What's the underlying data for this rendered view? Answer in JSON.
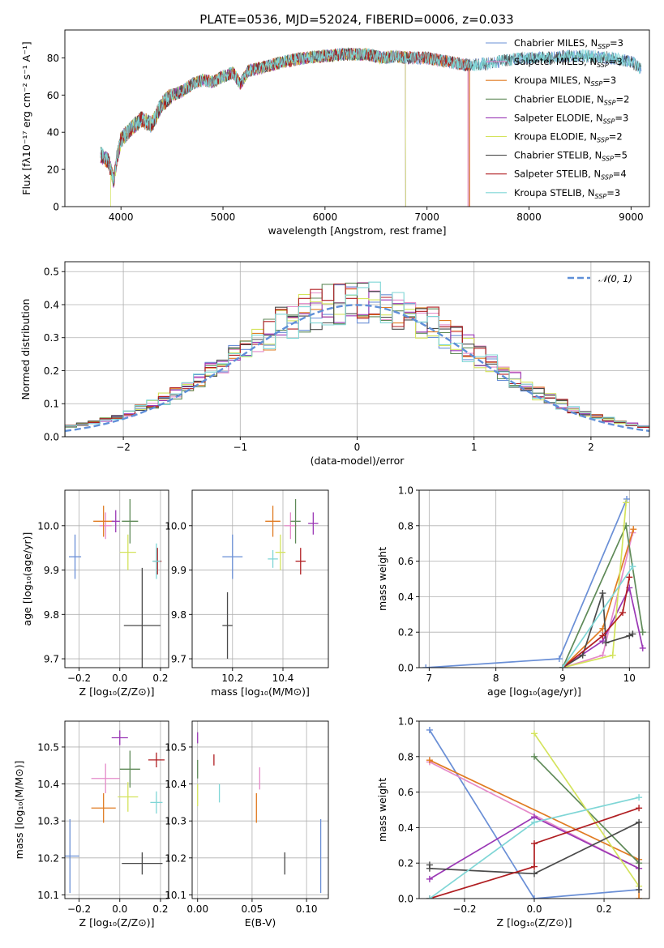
{
  "figure": {
    "title": "PLATE=0536, MJD=52024, FIBERID=0006, z=0.033"
  },
  "colors": {
    "Chabrier MILES": "#6a8fd6",
    "Salpeter MILES": "#e58ac9",
    "Kroupa MILES": "#e07b22",
    "Chabrier ELODIE": "#5f8a58",
    "Salpeter ELODIE": "#9a37b5",
    "Kroupa ELODIE": "#d4e35c",
    "Chabrier STELIB": "#4a4a4a",
    "Salpeter STELIB": "#b01e22",
    "Kroupa STELIB": "#7fd6d6"
  },
  "chart_data": [
    {
      "id": "spectrum",
      "type": "line",
      "xlabel": "wavelength [Angstrom, rest frame]",
      "ylabel": "Flux [fλ10⁻¹⁷ erg cm⁻² s⁻¹ A⁻¹]",
      "xlim": [
        3450,
        9180
      ],
      "ylim": [
        0,
        95
      ],
      "xticks": [
        4000,
        5000,
        6000,
        7000,
        8000,
        9000
      ],
      "yticks": [
        0,
        20,
        40,
        60,
        80
      ],
      "legend_position": "upper-right",
      "legend": [
        {
          "name": "Chabrier MILES",
          "label": "Chabrier MILES, N",
          "sub": "SSP",
          "suffix": "=3"
        },
        {
          "name": "Salpeter MILES",
          "label": "Salpeter MILES, N",
          "sub": "SSP",
          "suffix": "=3"
        },
        {
          "name": "Kroupa MILES",
          "label": "Kroupa MILES, N",
          "sub": "SSP",
          "suffix": "=3"
        },
        {
          "name": "Chabrier ELODIE",
          "label": "Chabrier ELODIE, N",
          "sub": "SSP",
          "suffix": "=2"
        },
        {
          "name": "Salpeter ELODIE",
          "label": "Salpeter ELODIE, N",
          "sub": "SSP",
          "suffix": "=3"
        },
        {
          "name": "Kroupa ELODIE",
          "label": "Kroupa ELODIE, N",
          "sub": "SSP",
          "suffix": "=2"
        },
        {
          "name": "Chabrier STELIB",
          "label": "Chabrier STELIB, N",
          "sub": "SSP",
          "suffix": "=5"
        },
        {
          "name": "Salpeter STELIB",
          "label": "Salpeter STELIB, N",
          "sub": "SSP",
          "suffix": "=4"
        },
        {
          "name": "Kroupa STELIB",
          "label": "Kroupa STELIB, N",
          "sub": "SSP",
          "suffix": "=3"
        }
      ],
      "continuum": [
        [
          3800,
          28
        ],
        [
          3880,
          24
        ],
        [
          3930,
          14
        ],
        [
          3960,
          26
        ],
        [
          4000,
          36
        ],
        [
          4100,
          42
        ],
        [
          4200,
          47
        ],
        [
          4300,
          44
        ],
        [
          4400,
          55
        ],
        [
          4500,
          60
        ],
        [
          4600,
          62
        ],
        [
          4700,
          66
        ],
        [
          4800,
          68
        ],
        [
          4900,
          67
        ],
        [
          5000,
          70
        ],
        [
          5100,
          72
        ],
        [
          5170,
          66
        ],
        [
          5250,
          73
        ],
        [
          5400,
          75
        ],
        [
          5600,
          78
        ],
        [
          5800,
          80
        ],
        [
          6000,
          81
        ],
        [
          6200,
          82
        ],
        [
          6400,
          82
        ],
        [
          6560,
          80
        ],
        [
          6700,
          81
        ],
        [
          6800,
          80
        ],
        [
          7000,
          80
        ],
        [
          7200,
          78
        ],
        [
          7400,
          76
        ],
        [
          7600,
          77
        ],
        [
          7800,
          79
        ],
        [
          8000,
          80
        ],
        [
          8200,
          80
        ],
        [
          8400,
          81
        ],
        [
          8600,
          81
        ],
        [
          8800,
          80
        ],
        [
          9000,
          78
        ],
        [
          9100,
          74
        ]
      ],
      "series_ranges": [
        {
          "name": "Chabrier MILES",
          "x": [
            3800,
            9100
          ]
        },
        {
          "name": "Salpeter MILES",
          "x": [
            3800,
            7400
          ]
        },
        {
          "name": "Kroupa MILES",
          "x": [
            3800,
            7420
          ]
        },
        {
          "name": "Chabrier ELODIE",
          "x": [
            3800,
            6790
          ]
        },
        {
          "name": "Salpeter ELODIE",
          "x": [
            3800,
            6790
          ]
        },
        {
          "name": "Kroupa ELODIE",
          "x": [
            3900,
            6790
          ]
        },
        {
          "name": "Chabrier STELIB",
          "x": [
            3800,
            9100
          ]
        },
        {
          "name": "Salpeter STELIB",
          "x": [
            3800,
            7410
          ]
        },
        {
          "name": "Kroupa STELIB",
          "x": [
            3800,
            9100
          ]
        }
      ]
    },
    {
      "id": "residuals",
      "type": "histogram",
      "xlabel": "(data-model)/error",
      "ylabel": "Normed distribution",
      "xlim": [
        -2.5,
        2.5
      ],
      "ylim": [
        0,
        0.53
      ],
      "xticks": [
        -2,
        -1,
        0,
        1,
        2
      ],
      "yticks": [
        0.0,
        0.1,
        0.2,
        0.3,
        0.4,
        0.5
      ],
      "grid": true,
      "bin_width": 0.1,
      "reference_curve": {
        "name": "N(0,1)",
        "label": "𝒩(0, 1)",
        "style": "dashed",
        "color": "#5f8fd8"
      },
      "legend_position": "upper-right"
    },
    {
      "id": "age-vs-Z",
      "type": "errorbar",
      "xlabel": "Z [log₁₀(Z/Z⊙)]",
      "ylabel": "age  [log₁₀(age/yr)]",
      "xlim": [
        -0.27,
        0.24
      ],
      "ylim": [
        9.68,
        10.08
      ],
      "xticks": [
        -0.2,
        0.0,
        0.2
      ],
      "yticks": [
        9.7,
        9.8,
        9.9,
        10.0
      ],
      "grid": true,
      "points": [
        {
          "name": "Chabrier MILES",
          "x": -0.22,
          "xerr": 0.03,
          "y": 9.93,
          "yerr": 0.05
        },
        {
          "name": "Salpeter MILES",
          "x": -0.07,
          "xerr": 0.03,
          "y": 10.0,
          "yerr": 0.03
        },
        {
          "name": "Kroupa MILES",
          "x": -0.08,
          "xerr": 0.05,
          "y": 10.01,
          "yerr": 0.035
        },
        {
          "name": "Chabrier ELODIE",
          "x": 0.05,
          "xerr": 0.04,
          "y": 10.01,
          "yerr": 0.05
        },
        {
          "name": "Salpeter ELODIE",
          "x": -0.02,
          "xerr": 0.02,
          "y": 10.01,
          "yerr": 0.025
        },
        {
          "name": "Kroupa ELODIE",
          "x": 0.04,
          "xerr": 0.04,
          "y": 9.94,
          "yerr": 0.04
        },
        {
          "name": "Chabrier STELIB",
          "x": 0.11,
          "xerr": 0.09,
          "y": 9.775,
          "yerr": 0.13
        },
        {
          "name": "Salpeter STELIB",
          "x": 0.185,
          "xerr": 0.02,
          "y": 9.92,
          "yerr": 0.03
        },
        {
          "name": "Kroupa STELIB",
          "x": 0.18,
          "xerr": 0.02,
          "y": 9.92,
          "yerr": 0.04
        }
      ]
    },
    {
      "id": "age-vs-mass",
      "type": "errorbar",
      "xlabel": "mass [log₁₀(M/M⊙)]",
      "xlim": [
        10.04,
        10.58
      ],
      "ylim": [
        9.68,
        10.08
      ],
      "xticks": [
        10.2,
        10.4
      ],
      "yticks": [
        9.7,
        9.8,
        9.9,
        10.0
      ],
      "grid": true,
      "points": [
        {
          "name": "Chabrier MILES",
          "x": 10.2,
          "xerr": 0.04,
          "y": 9.93,
          "yerr": 0.05
        },
        {
          "name": "Salpeter MILES",
          "x": 10.43,
          "xerr": 0.025,
          "y": 10.0,
          "yerr": 0.03
        },
        {
          "name": "Kroupa MILES",
          "x": 10.36,
          "xerr": 0.03,
          "y": 10.01,
          "yerr": 0.035
        },
        {
          "name": "Chabrier ELODIE",
          "x": 10.45,
          "xerr": 0.02,
          "y": 10.01,
          "yerr": 0.05
        },
        {
          "name": "Salpeter ELODIE",
          "x": 10.52,
          "xerr": 0.02,
          "y": 10.005,
          "yerr": 0.025
        },
        {
          "name": "Kroupa ELODIE",
          "x": 10.39,
          "xerr": 0.02,
          "y": 9.94,
          "yerr": 0.04
        },
        {
          "name": "Chabrier STELIB",
          "x": 10.18,
          "xerr": 0.02,
          "y": 9.775,
          "yerr": 0.075
        },
        {
          "name": "Salpeter STELIB",
          "x": 10.47,
          "xerr": 0.02,
          "y": 9.92,
          "yerr": 0.03
        },
        {
          "name": "Kroupa STELIB",
          "x": 10.36,
          "xerr": 0.02,
          "y": 9.925,
          "yerr": 0.02
        }
      ]
    },
    {
      "id": "massweight-vs-age",
      "type": "line",
      "xlabel": "age  [log₁₀(age/yr)]",
      "ylabel": "mass weight",
      "xlim": [
        6.85,
        10.3
      ],
      "ylim": [
        0,
        1.0
      ],
      "xticks": [
        7,
        8,
        9,
        10
      ],
      "yticks": [
        0.0,
        0.2,
        0.4,
        0.6,
        0.8,
        1.0
      ],
      "grid": true,
      "series": [
        {
          "name": "Chabrier MILES",
          "points": [
            [
              6.95,
              0.0
            ],
            [
              8.95,
              0.05
            ],
            [
              9.96,
              0.95
            ]
          ]
        },
        {
          "name": "Salpeter MILES",
          "points": [
            [
              9.0,
              0.0
            ],
            [
              9.6,
              0.07
            ],
            [
              10.05,
              0.76
            ]
          ]
        },
        {
          "name": "Kroupa MILES",
          "points": [
            [
              9.0,
              0.0
            ],
            [
              9.6,
              0.22
            ],
            [
              10.06,
              0.78
            ]
          ]
        },
        {
          "name": "Chabrier ELODIE",
          "points": [
            [
              9.0,
              0.0
            ],
            [
              9.95,
              0.8
            ],
            [
              10.2,
              0.2
            ]
          ]
        },
        {
          "name": "Salpeter ELODIE",
          "points": [
            [
              9.0,
              0.0
            ],
            [
              9.6,
              0.15
            ],
            [
              10.0,
              0.45
            ],
            [
              10.2,
              0.11
            ]
          ]
        },
        {
          "name": "Kroupa ELODIE",
          "points": [
            [
              9.0,
              0.0
            ],
            [
              9.75,
              0.07
            ],
            [
              9.95,
              0.93
            ]
          ]
        },
        {
          "name": "Chabrier STELIB",
          "points": [
            [
              9.0,
              0.0
            ],
            [
              9.3,
              0.07
            ],
            [
              9.6,
              0.42
            ],
            [
              9.65,
              0.14
            ],
            [
              10.0,
              0.18
            ],
            [
              10.05,
              0.19
            ]
          ]
        },
        {
          "name": "Salpeter STELIB",
          "points": [
            [
              9.0,
              0.0
            ],
            [
              9.6,
              0.18
            ],
            [
              9.9,
              0.31
            ],
            [
              10.0,
              0.51
            ]
          ]
        },
        {
          "name": "Kroupa STELIB",
          "points": [
            [
              9.0,
              0.0
            ],
            [
              10.05,
              0.57
            ]
          ]
        }
      ]
    },
    {
      "id": "mass-vs-Z",
      "type": "errorbar",
      "xlabel": "Z [log₁₀(Z/Z⊙)]",
      "ylabel": "mass [log₁₀(M/M⊙)]",
      "xlim": [
        -0.27,
        0.24
      ],
      "ylim": [
        10.09,
        10.57
      ],
      "xticks": [
        -0.2,
        0.0,
        0.2
      ],
      "yticks": [
        10.1,
        10.2,
        10.3,
        10.4,
        10.5
      ],
      "grid": true,
      "points": [
        {
          "name": "Chabrier MILES",
          "x": -0.245,
          "xerr": 0.045,
          "y": 10.205,
          "yerr": 0.1
        },
        {
          "name": "Salpeter MILES",
          "x": -0.07,
          "xerr": 0.07,
          "y": 10.415,
          "yerr": 0.04
        },
        {
          "name": "Kroupa MILES",
          "x": -0.08,
          "xerr": 0.06,
          "y": 10.335,
          "yerr": 0.04
        },
        {
          "name": "Chabrier ELODIE",
          "x": 0.05,
          "xerr": 0.05,
          "y": 10.44,
          "yerr": 0.05
        },
        {
          "name": "Salpeter ELODIE",
          "x": 0.0,
          "xerr": 0.04,
          "y": 10.525,
          "yerr": 0.02
        },
        {
          "name": "Kroupa ELODIE",
          "x": 0.04,
          "xerr": 0.05,
          "y": 10.365,
          "yerr": 0.04
        },
        {
          "name": "Chabrier STELIB",
          "x": 0.11,
          "xerr": 0.1,
          "y": 10.185,
          "yerr": 0.03
        },
        {
          "name": "Salpeter STELIB",
          "x": 0.18,
          "xerr": 0.04,
          "y": 10.465,
          "yerr": 0.02
        },
        {
          "name": "Kroupa STELIB",
          "x": 0.18,
          "xerr": 0.03,
          "y": 10.35,
          "yerr": 0.03
        }
      ]
    },
    {
      "id": "mass-vs-ebv",
      "type": "errorbar",
      "xlabel": "E(B-V)",
      "xlim": [
        -0.005,
        0.12
      ],
      "ylim": [
        10.09,
        10.57
      ],
      "xticks": [
        0.0,
        0.05,
        0.1
      ],
      "yticks": [
        10.1,
        10.2,
        10.3,
        10.4,
        10.5
      ],
      "grid": true,
      "points": [
        {
          "name": "Chabrier MILES",
          "x": 0.113,
          "xerr": 0.0,
          "y": 10.205,
          "yerr": 0.1
        },
        {
          "name": "Salpeter MILES",
          "x": 0.057,
          "xerr": 0.0,
          "y": 10.415,
          "yerr": 0.03
        },
        {
          "name": "Kroupa MILES",
          "x": 0.054,
          "xerr": 0.0,
          "y": 10.335,
          "yerr": 0.04
        },
        {
          "name": "Chabrier ELODIE",
          "x": 0.0,
          "xerr": 0.0,
          "y": 10.44,
          "yerr": 0.025
        },
        {
          "name": "Salpeter ELODIE",
          "x": 0.0,
          "xerr": 0.0,
          "y": 10.525,
          "yerr": 0.015
        },
        {
          "name": "Kroupa ELODIE",
          "x": 0.0,
          "xerr": 0.0,
          "y": 10.37,
          "yerr": 0.03
        },
        {
          "name": "Chabrier STELIB",
          "x": 0.08,
          "xerr": 0.0,
          "y": 10.185,
          "yerr": 0.03
        },
        {
          "name": "Salpeter STELIB",
          "x": 0.015,
          "xerr": 0.0,
          "y": 10.465,
          "yerr": 0.015
        },
        {
          "name": "Kroupa STELIB",
          "x": 0.02,
          "xerr": 0.0,
          "y": 10.375,
          "yerr": 0.025
        }
      ]
    },
    {
      "id": "massweight-vs-Z",
      "type": "line",
      "xlabel": "Z [log₁₀(Z/Z⊙)]",
      "ylabel": "mass weight",
      "xlim": [
        -0.33,
        0.33
      ],
      "ylim": [
        0,
        1.0
      ],
      "xticks": [
        -0.2,
        0.0,
        0.2
      ],
      "yticks": [
        0.0,
        0.2,
        0.4,
        0.6,
        0.8,
        1.0
      ],
      "grid": true,
      "series": [
        {
          "name": "Chabrier MILES",
          "points": [
            [
              -0.3,
              0.95
            ],
            [
              0.0,
              0.0
            ],
            [
              0.3,
              0.05
            ]
          ]
        },
        {
          "name": "Salpeter MILES",
          "points": [
            [
              -0.3,
              0.77
            ],
            [
              0.3,
              0.17
            ]
          ]
        },
        {
          "name": "Kroupa MILES",
          "points": [
            [
              -0.3,
              0.78
            ],
            [
              0.3,
              0.22
            ],
            [
              0.3,
              0.0
            ]
          ]
        },
        {
          "name": "Chabrier ELODIE",
          "points": [
            [
              0.0,
              0.8
            ],
            [
              0.3,
              0.2
            ]
          ]
        },
        {
          "name": "Salpeter ELODIE",
          "points": [
            [
              -0.3,
              0.11
            ],
            [
              0.0,
              0.46
            ],
            [
              0.3,
              0.17
            ]
          ]
        },
        {
          "name": "Kroupa ELODIE",
          "points": [
            [
              0.0,
              0.93
            ],
            [
              0.3,
              0.07
            ]
          ]
        },
        {
          "name": "Chabrier STELIB",
          "points": [
            [
              -0.3,
              0.19
            ],
            [
              -0.3,
              0.17
            ],
            [
              0.0,
              0.14
            ],
            [
              0.3,
              0.43
            ],
            [
              0.3,
              0.05
            ]
          ]
        },
        {
          "name": "Salpeter STELIB",
          "points": [
            [
              -0.3,
              0.0
            ],
            [
              0.0,
              0.18
            ],
            [
              0.0,
              0.31
            ],
            [
              0.3,
              0.51
            ]
          ]
        },
        {
          "name": "Kroupa STELIB",
          "points": [
            [
              -0.3,
              0.0
            ],
            [
              0.0,
              0.43
            ],
            [
              0.3,
              0.57
            ]
          ]
        }
      ]
    }
  ]
}
